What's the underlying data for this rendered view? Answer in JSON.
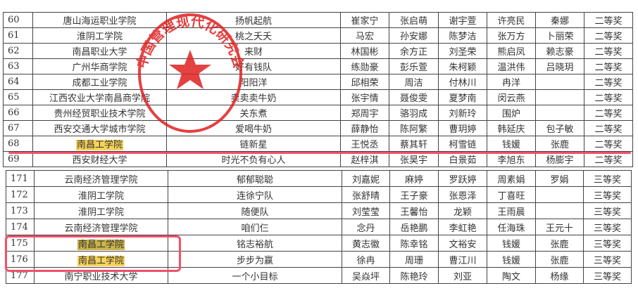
{
  "table_top": {
    "rows": [
      {
        "no": "60",
        "school": "唐山海运职业学院",
        "team": "扬帆起航",
        "m1": "崔家宁",
        "m2": "张启萌",
        "m3": "谢宇萱",
        "m4": "许亮民",
        "m5": "秦娜",
        "award": "二等奖"
      },
      {
        "no": "61",
        "school": "淮阴工学院",
        "team": "桃之夭夭",
        "m1": "马宏",
        "m2": "孙安娜",
        "m3": "陈梦洁",
        "m4": "张万方",
        "m5": "卜丽荣",
        "award": "二等奖"
      },
      {
        "no": "62",
        "school": "南昌职业大学",
        "team": "来财",
        "m1": "林国彬",
        "m2": "余方正",
        "m3": "刘圣荣",
        "m4": "熊启凤",
        "m5": "赖志豪",
        "award": "二等奖"
      },
      {
        "no": "63",
        "school": "广州华商学院",
        "team": "好有钱队",
        "m1": "练勋豪",
        "m2": "彭乐萱",
        "m3": "朱柯颖",
        "m4": "温洪伟",
        "m5": "吕晓玥",
        "award": "二等奖"
      },
      {
        "no": "64",
        "school": "成都工业学院",
        "team": "阳阳洋",
        "m1": "邱相荣",
        "m2": "周洁",
        "m3": "付林川",
        "m4": "冉洋",
        "m5": "",
        "award": "二等奖"
      },
      {
        "no": "65",
        "school": "江西农业大学南昌商学院",
        "team": "卖卖卖牛奶",
        "m1": "张宇情",
        "m2": "聂俊雯",
        "m3": "夏梦南",
        "m4": "闵云燕",
        "m5": "",
        "award": "二等奖"
      },
      {
        "no": "66",
        "school": "贵州经贸职业技术学院",
        "team": "关东煮",
        "m1": "郑周宇",
        "m2": "骆羽成",
        "m3": "刘新玲",
        "m4": "围炉",
        "m5": "",
        "award": "二等奖"
      },
      {
        "no": "67",
        "school": "西安交通大学城市学院",
        "team": "爱喝牛奶",
        "m1": "薛静怡",
        "m2": "陈阿繁",
        "m3": "曹玥婷",
        "m4": "韩延庆",
        "m5": "包子敏",
        "award": "二等奖"
      },
      {
        "no": "68",
        "school": "南昌工学院",
        "team": "链新星",
        "m1": "王悦丞",
        "m2": "蔡其轩",
        "m3": "柯雪链",
        "m4": "钱媛",
        "m5": "张鹿",
        "award": "二等奖",
        "highlight": "yellow"
      },
      {
        "no": "69",
        "school": "西安财经大学",
        "team": "时光不负有心人",
        "m1": "赵梓淇",
        "m2": "张昊宇",
        "m3": "白景茹",
        "m4": "李旭东",
        "m5": "杨膨宇",
        "award": "二等奖"
      }
    ]
  },
  "table_bottom": {
    "rows": [
      {
        "no": "171",
        "school": "云南经济管理学院",
        "team": "郁郁聪聪",
        "m1": "刘嘉妮",
        "m2": "麻婷",
        "m3": "罗跃婷",
        "m4": "周素娟",
        "m5": "罗娟",
        "award": "三等奖"
      },
      {
        "no": "172",
        "school": "淮阴工学院",
        "team": "连徐宁队",
        "m1": "张舒晴",
        "m2": "王子豪",
        "m3": "张恩泽",
        "m4": "丁喜旺",
        "m5": "",
        "award": "三等奖"
      },
      {
        "no": "173",
        "school": "淮阴工学院",
        "team": "随便队",
        "m1": "刘莹莹",
        "m2": "王馨怡",
        "m3": "龙颖",
        "m4": "王雨晨",
        "m5": "",
        "award": "三等奖"
      },
      {
        "no": "174",
        "school": "云南经济管理学院",
        "team": "咱们仨",
        "m1": "念丹",
        "m2": "岳艳鹏",
        "m3": "李虹艳",
        "m4": "任海珠",
        "m5": "王元十",
        "award": "三等奖"
      },
      {
        "no": "175",
        "school": "南昌工学院",
        "team": "铭志裕航",
        "m1": "黄志徽",
        "m2": "陈幸铭",
        "m3": "文裕安",
        "m4": "钱媛",
        "m5": "张鹿",
        "award": "三等奖",
        "highlight": "selected"
      },
      {
        "no": "176",
        "school": "南昌工学院",
        "team": "步步为赢",
        "m1": "徐冉",
        "m2": "周珊",
        "m3": "曹江川",
        "m4": "钱媛",
        "m5": "张鹿",
        "award": "三等奖",
        "highlight": "yellow"
      },
      {
        "no": "177",
        "school": "南宁职业技术大学",
        "team": "一个小目标",
        "m1": "吴焱坪",
        "m2": "陈艳玲",
        "m3": "刘亚",
        "m4": "陶文",
        "m5": "杨缘",
        "award": "三等奖"
      }
    ]
  },
  "stamp": {
    "text": "中国管理现代化研究会",
    "color": "#e02020",
    "icon": "star-icon"
  },
  "annotations": {
    "color": "#f0506a"
  }
}
